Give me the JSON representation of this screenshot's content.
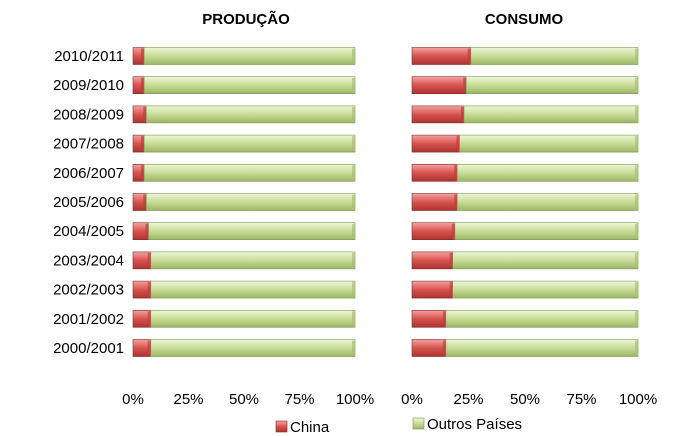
{
  "chart_data": [
    {
      "type": "bar",
      "stacked": true,
      "orientation": "horizontal",
      "percent_stacked": true,
      "title": "PRODUÇÃO",
      "categories": [
        "2010/2011",
        "2009/2010",
        "2008/2009",
        "2007/2008",
        "2006/2007",
        "2005/2006",
        "2004/2005",
        "2003/2004",
        "2002/2003",
        "2001/2002",
        "2000/2001"
      ],
      "series": [
        {
          "name": "China",
          "color": "#d9534f",
          "values": [
            5,
            5,
            6,
            5,
            5,
            6,
            7,
            8,
            8,
            8,
            8
          ]
        },
        {
          "name": "Outros Países",
          "color": "#c8dc96",
          "values": [
            95,
            95,
            94,
            95,
            95,
            94,
            93,
            92,
            92,
            92,
            92
          ]
        }
      ],
      "xlim": [
        0,
        100
      ],
      "xticks": [
        "0%",
        "25%",
        "50%",
        "75%",
        "100%"
      ]
    },
    {
      "type": "bar",
      "stacked": true,
      "orientation": "horizontal",
      "percent_stacked": true,
      "title": "CONSUMO",
      "categories": [
        "2010/2011",
        "2009/2010",
        "2008/2009",
        "2007/2008",
        "2006/2007",
        "2005/2006",
        "2004/2005",
        "2003/2004",
        "2002/2003",
        "2001/2002",
        "2000/2001"
      ],
      "series": [
        {
          "name": "China",
          "color": "#d9534f",
          "values": [
            26,
            24,
            23,
            21,
            20,
            20,
            19,
            18,
            18,
            15,
            15
          ]
        },
        {
          "name": "Outros Países",
          "color": "#c8dc96",
          "values": [
            74,
            76,
            77,
            79,
            80,
            80,
            81,
            82,
            82,
            85,
            85
          ]
        }
      ],
      "xlim": [
        0,
        100
      ],
      "xticks": [
        "0%",
        "25%",
        "50%",
        "75%",
        "100%"
      ]
    }
  ],
  "legend": {
    "position": "bottom",
    "items": [
      {
        "label": "China",
        "color": "#d9534f"
      },
      {
        "label": "Outros Países",
        "color": "#c8dc96"
      }
    ]
  }
}
